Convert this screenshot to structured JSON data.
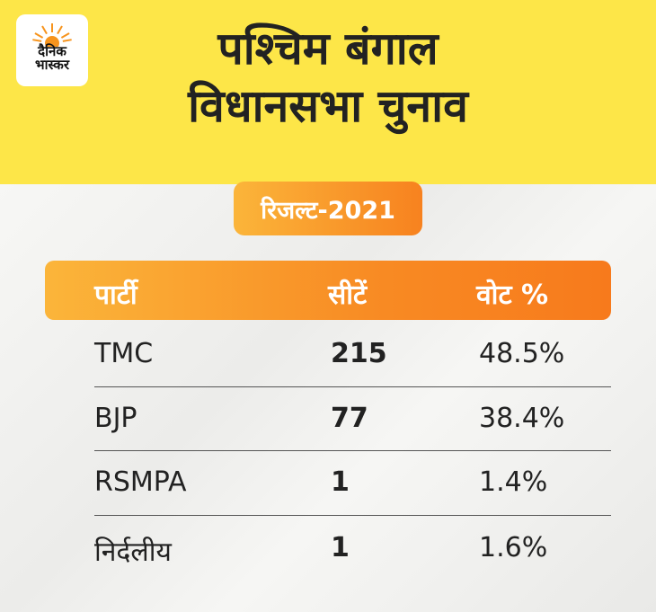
{
  "header": {
    "logo_text": [
      "दैनिक",
      "भास्कर"
    ],
    "title_line1": "पश्चिम बंगाल",
    "title_line2": "विधानसभा चुनाव",
    "badge": "रिजल्ट-2021"
  },
  "colors": {
    "header_bg": "#fde648",
    "accent_start": "#fbb53a",
    "accent_end": "#f77a1c"
  },
  "table": {
    "columns": [
      "पार्टी",
      "सीटें",
      "वोट %"
    ],
    "rows": [
      {
        "party": "TMC",
        "seats": "215",
        "vote": "48.5%"
      },
      {
        "party": "BJP",
        "seats": "77",
        "vote": "38.4%"
      },
      {
        "party": "RSMPA",
        "seats": "1",
        "vote": "1.4%"
      },
      {
        "party": "निर्दलीय",
        "seats": "1",
        "vote": "1.6%"
      }
    ]
  },
  "chart_data": {
    "type": "table",
    "title": "पश्चिम बंगाल विधानसभा चुनाव",
    "subtitle": "रिजल्ट-2021",
    "columns": [
      "पार्टी",
      "सीटें",
      "वोट %"
    ],
    "categories": [
      "TMC",
      "BJP",
      "RSMPA",
      "निर्दलीय"
    ],
    "series": [
      {
        "name": "सीटें",
        "values": [
          215,
          77,
          1,
          1
        ]
      },
      {
        "name": "वोट %",
        "values": [
          48.5,
          38.4,
          1.4,
          1.6
        ]
      }
    ]
  }
}
